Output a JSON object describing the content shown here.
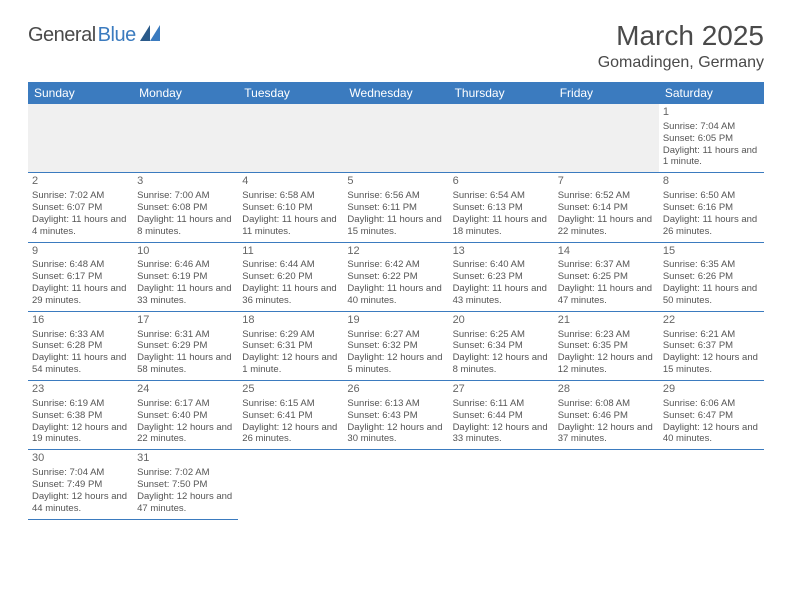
{
  "logo": {
    "text_dark": "General",
    "text_blue": "Blue"
  },
  "title": "March 2025",
  "location": "Gomadingen, Germany",
  "colors": {
    "header_bg": "#3b7bbf",
    "header_text": "#ffffff",
    "border": "#3b7bbf",
    "daytext": "#555555",
    "firstrow_bg": "#f0f0f0"
  },
  "weekdays": [
    "Sunday",
    "Monday",
    "Tuesday",
    "Wednesday",
    "Thursday",
    "Friday",
    "Saturday"
  ],
  "weeks": [
    [
      null,
      null,
      null,
      null,
      null,
      null,
      {
        "n": "1",
        "sr": "Sunrise: 7:04 AM",
        "ss": "Sunset: 6:05 PM",
        "dl": "Daylight: 11 hours and 1 minute."
      }
    ],
    [
      {
        "n": "2",
        "sr": "Sunrise: 7:02 AM",
        "ss": "Sunset: 6:07 PM",
        "dl": "Daylight: 11 hours and 4 minutes."
      },
      {
        "n": "3",
        "sr": "Sunrise: 7:00 AM",
        "ss": "Sunset: 6:08 PM",
        "dl": "Daylight: 11 hours and 8 minutes."
      },
      {
        "n": "4",
        "sr": "Sunrise: 6:58 AM",
        "ss": "Sunset: 6:10 PM",
        "dl": "Daylight: 11 hours and 11 minutes."
      },
      {
        "n": "5",
        "sr": "Sunrise: 6:56 AM",
        "ss": "Sunset: 6:11 PM",
        "dl": "Daylight: 11 hours and 15 minutes."
      },
      {
        "n": "6",
        "sr": "Sunrise: 6:54 AM",
        "ss": "Sunset: 6:13 PM",
        "dl": "Daylight: 11 hours and 18 minutes."
      },
      {
        "n": "7",
        "sr": "Sunrise: 6:52 AM",
        "ss": "Sunset: 6:14 PM",
        "dl": "Daylight: 11 hours and 22 minutes."
      },
      {
        "n": "8",
        "sr": "Sunrise: 6:50 AM",
        "ss": "Sunset: 6:16 PM",
        "dl": "Daylight: 11 hours and 26 minutes."
      }
    ],
    [
      {
        "n": "9",
        "sr": "Sunrise: 6:48 AM",
        "ss": "Sunset: 6:17 PM",
        "dl": "Daylight: 11 hours and 29 minutes."
      },
      {
        "n": "10",
        "sr": "Sunrise: 6:46 AM",
        "ss": "Sunset: 6:19 PM",
        "dl": "Daylight: 11 hours and 33 minutes."
      },
      {
        "n": "11",
        "sr": "Sunrise: 6:44 AM",
        "ss": "Sunset: 6:20 PM",
        "dl": "Daylight: 11 hours and 36 minutes."
      },
      {
        "n": "12",
        "sr": "Sunrise: 6:42 AM",
        "ss": "Sunset: 6:22 PM",
        "dl": "Daylight: 11 hours and 40 minutes."
      },
      {
        "n": "13",
        "sr": "Sunrise: 6:40 AM",
        "ss": "Sunset: 6:23 PM",
        "dl": "Daylight: 11 hours and 43 minutes."
      },
      {
        "n": "14",
        "sr": "Sunrise: 6:37 AM",
        "ss": "Sunset: 6:25 PM",
        "dl": "Daylight: 11 hours and 47 minutes."
      },
      {
        "n": "15",
        "sr": "Sunrise: 6:35 AM",
        "ss": "Sunset: 6:26 PM",
        "dl": "Daylight: 11 hours and 50 minutes."
      }
    ],
    [
      {
        "n": "16",
        "sr": "Sunrise: 6:33 AM",
        "ss": "Sunset: 6:28 PM",
        "dl": "Daylight: 11 hours and 54 minutes."
      },
      {
        "n": "17",
        "sr": "Sunrise: 6:31 AM",
        "ss": "Sunset: 6:29 PM",
        "dl": "Daylight: 11 hours and 58 minutes."
      },
      {
        "n": "18",
        "sr": "Sunrise: 6:29 AM",
        "ss": "Sunset: 6:31 PM",
        "dl": "Daylight: 12 hours and 1 minute."
      },
      {
        "n": "19",
        "sr": "Sunrise: 6:27 AM",
        "ss": "Sunset: 6:32 PM",
        "dl": "Daylight: 12 hours and 5 minutes."
      },
      {
        "n": "20",
        "sr": "Sunrise: 6:25 AM",
        "ss": "Sunset: 6:34 PM",
        "dl": "Daylight: 12 hours and 8 minutes."
      },
      {
        "n": "21",
        "sr": "Sunrise: 6:23 AM",
        "ss": "Sunset: 6:35 PM",
        "dl": "Daylight: 12 hours and 12 minutes."
      },
      {
        "n": "22",
        "sr": "Sunrise: 6:21 AM",
        "ss": "Sunset: 6:37 PM",
        "dl": "Daylight: 12 hours and 15 minutes."
      }
    ],
    [
      {
        "n": "23",
        "sr": "Sunrise: 6:19 AM",
        "ss": "Sunset: 6:38 PM",
        "dl": "Daylight: 12 hours and 19 minutes."
      },
      {
        "n": "24",
        "sr": "Sunrise: 6:17 AM",
        "ss": "Sunset: 6:40 PM",
        "dl": "Daylight: 12 hours and 22 minutes."
      },
      {
        "n": "25",
        "sr": "Sunrise: 6:15 AM",
        "ss": "Sunset: 6:41 PM",
        "dl": "Daylight: 12 hours and 26 minutes."
      },
      {
        "n": "26",
        "sr": "Sunrise: 6:13 AM",
        "ss": "Sunset: 6:43 PM",
        "dl": "Daylight: 12 hours and 30 minutes."
      },
      {
        "n": "27",
        "sr": "Sunrise: 6:11 AM",
        "ss": "Sunset: 6:44 PM",
        "dl": "Daylight: 12 hours and 33 minutes."
      },
      {
        "n": "28",
        "sr": "Sunrise: 6:08 AM",
        "ss": "Sunset: 6:46 PM",
        "dl": "Daylight: 12 hours and 37 minutes."
      },
      {
        "n": "29",
        "sr": "Sunrise: 6:06 AM",
        "ss": "Sunset: 6:47 PM",
        "dl": "Daylight: 12 hours and 40 minutes."
      }
    ],
    [
      {
        "n": "30",
        "sr": "Sunrise: 7:04 AM",
        "ss": "Sunset: 7:49 PM",
        "dl": "Daylight: 12 hours and 44 minutes."
      },
      {
        "n": "31",
        "sr": "Sunrise: 7:02 AM",
        "ss": "Sunset: 7:50 PM",
        "dl": "Daylight: 12 hours and 47 minutes."
      },
      null,
      null,
      null,
      null,
      null
    ]
  ]
}
